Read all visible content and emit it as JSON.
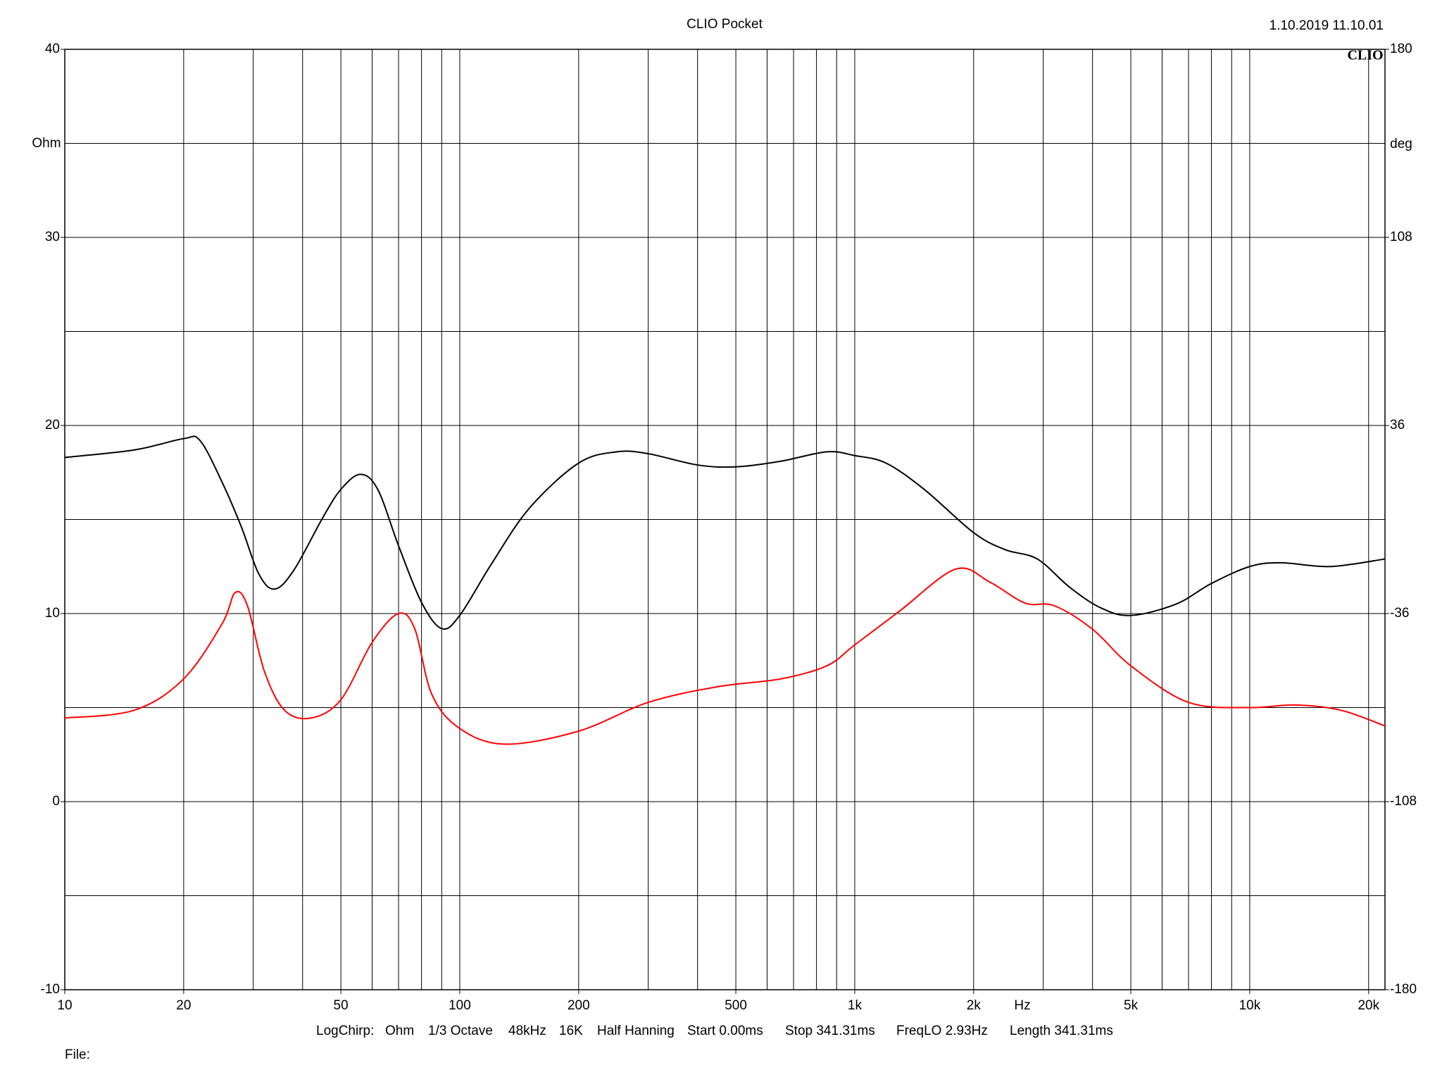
{
  "chart_data": {
    "type": "line",
    "title": "CLIO Pocket",
    "timestamp": "1.10.2019 11.10.01",
    "logo": "CLIO",
    "y_label": "Ohm",
    "y2_label": "deg",
    "x_label": "Hz",
    "x_log": true,
    "grid": true,
    "xlim": [
      10,
      22000
    ],
    "xticks": [
      10,
      20,
      50,
      100,
      200,
      500,
      {
        "value": 1000,
        "label": "1k"
      },
      {
        "value": 2000,
        "label": "2k"
      },
      {
        "value": 5000,
        "label": "5k"
      },
      {
        "value": 10000,
        "label": "10k"
      },
      {
        "value": 20000,
        "label": "20k"
      }
    ],
    "xgrid": [
      10,
      20,
      30,
      40,
      50,
      60,
      70,
      80,
      90,
      100,
      200,
      300,
      400,
      500,
      600,
      700,
      800,
      900,
      1000,
      2000,
      3000,
      4000,
      5000,
      6000,
      7000,
      8000,
      9000,
      10000,
      20000
    ],
    "ylim": [
      -10,
      40
    ],
    "yticks": [
      -10,
      0,
      10,
      20,
      30,
      40
    ],
    "ygrid": [
      -10,
      -5,
      0,
      5,
      10,
      15,
      20,
      25,
      30,
      35,
      40
    ],
    "y2lim": [
      -180,
      180
    ],
    "y2ticks": [
      -180,
      -108,
      -36,
      36,
      108,
      180
    ],
    "series": [
      {
        "name": "Ohm",
        "color": "#000000",
        "axis": "y",
        "x": [
          10,
          15,
          20,
          22,
          25,
          28,
          31,
          34,
          38,
          45,
          50,
          56,
          62,
          70,
          80,
          90,
          100,
          120,
          150,
          200,
          250,
          300,
          400,
          500,
          650,
          850,
          1000,
          1200,
          1500,
          2000,
          2400,
          2900,
          3500,
          4200,
          5000,
          6500,
          8000,
          10000,
          12000,
          16000,
          22000
        ],
        "values": [
          18.3,
          18.7,
          19.3,
          19.2,
          17.0,
          14.6,
          12.1,
          11.3,
          12.3,
          15.1,
          16.6,
          17.4,
          16.6,
          13.6,
          10.6,
          9.2,
          9.9,
          12.6,
          15.6,
          18.0,
          18.6,
          18.5,
          17.9,
          17.8,
          18.1,
          18.6,
          18.4,
          18.0,
          16.6,
          14.3,
          13.4,
          12.9,
          11.4,
          10.3,
          9.9,
          10.5,
          11.6,
          12.5,
          12.7,
          12.5,
          12.9
        ]
      },
      {
        "name": "deg",
        "color": "#ff0000",
        "axis": "y2",
        "x": [
          10,
          15,
          20,
          25,
          27,
          29,
          32,
          36,
          42,
          50,
          60,
          70,
          77,
          85,
          100,
          130,
          200,
          300,
          450,
          650,
          850,
          1000,
          1300,
          1800,
          2200,
          2700,
          3200,
          4000,
          5000,
          7000,
          10000,
          13000,
          17000,
          22000
        ],
        "values": [
          -76,
          -73,
          -61,
          -40,
          -28,
          -33,
          -58,
          -73,
          -76,
          -69,
          -47,
          -36,
          -42,
          -67,
          -80,
          -86,
          -81,
          -70,
          -64,
          -61,
          -56,
          -48,
          -35,
          -19,
          -24,
          -32,
          -33,
          -42,
          -56,
          -70,
          -72,
          -71,
          -73,
          -79
        ]
      }
    ],
    "footer": [
      "LogChirp:",
      "Ohm",
      "1/3 Octave",
      "48kHz",
      "16K",
      "Half Hanning",
      "Start 0.00ms",
      "Stop 341.31ms",
      "FreqLO 2.93Hz",
      "Length 341.31ms"
    ],
    "file_label": "File:"
  }
}
